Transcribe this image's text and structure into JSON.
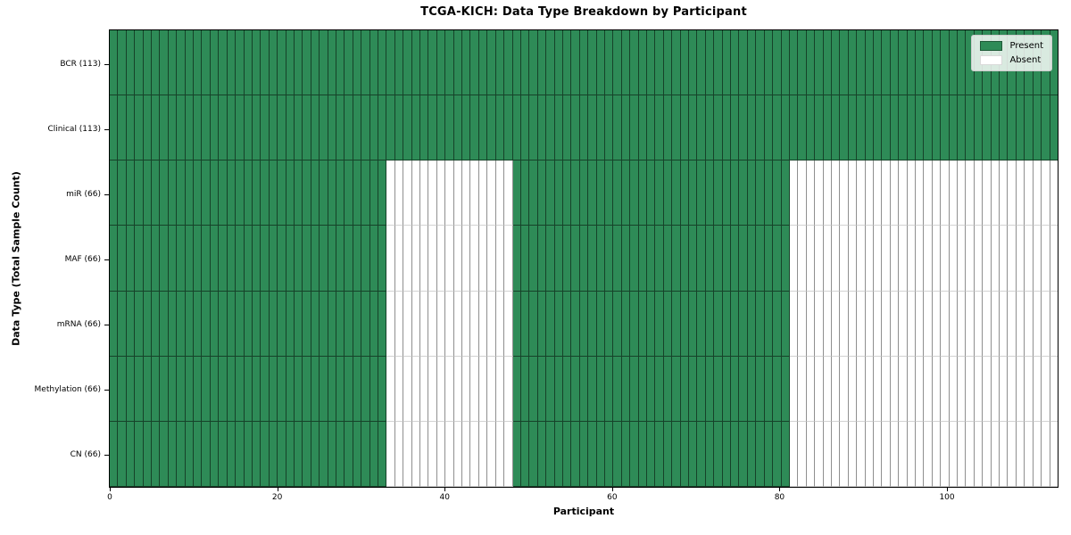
{
  "chart_data": {
    "type": "heatmap",
    "title": "TCGA-KICH: Data Type Breakdown by Participant",
    "xlabel": "Participant",
    "ylabel": "Data Type (Total Sample Count)",
    "n_participants": 113,
    "x_ticks": [
      0,
      20,
      40,
      60,
      80,
      100
    ],
    "colors": {
      "present": "#2e8b57",
      "absent": "#ffffff"
    },
    "legend": {
      "position": "upper right",
      "entries": [
        {
          "label": "Present",
          "color": "#2e8b57"
        },
        {
          "label": "Absent",
          "color": "#ffffff"
        }
      ]
    },
    "rows": [
      {
        "label": "BCR (113)",
        "total_samples": 113,
        "present_ranges": [
          [
            0,
            112
          ]
        ]
      },
      {
        "label": "Clinical (113)",
        "total_samples": 113,
        "present_ranges": [
          [
            0,
            112
          ]
        ]
      },
      {
        "label": "miR (66)",
        "total_samples": 66,
        "present_ranges": [
          [
            0,
            32
          ],
          [
            48,
            80
          ]
        ]
      },
      {
        "label": "MAF (66)",
        "total_samples": 66,
        "present_ranges": [
          [
            0,
            32
          ],
          [
            48,
            80
          ]
        ]
      },
      {
        "label": "mRNA (66)",
        "total_samples": 66,
        "present_ranges": [
          [
            0,
            32
          ],
          [
            48,
            80
          ]
        ]
      },
      {
        "label": "Methylation (66)",
        "total_samples": 66,
        "present_ranges": [
          [
            0,
            32
          ],
          [
            48,
            80
          ]
        ]
      },
      {
        "label": "CN (66)",
        "total_samples": 66,
        "present_ranges": [
          [
            0,
            32
          ],
          [
            48,
            80
          ]
        ]
      }
    ]
  }
}
